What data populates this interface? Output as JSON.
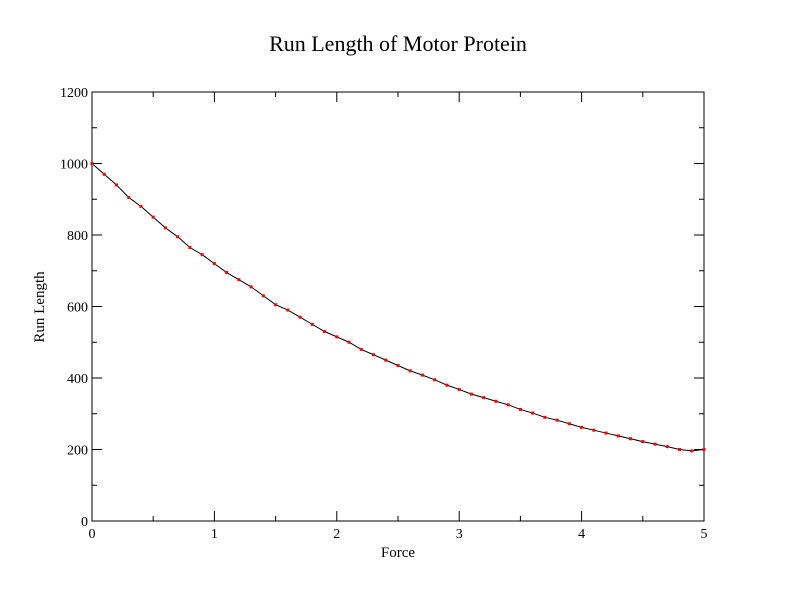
{
  "chart_data": {
    "type": "line",
    "title": "Run Length of Motor Protein",
    "xlabel": "Force",
    "ylabel": "Run Length",
    "xlim": [
      0,
      5
    ],
    "ylim": [
      0,
      1200
    ],
    "x_ticks": [
      0,
      1,
      2,
      3,
      4,
      5
    ],
    "y_ticks": [
      0,
      200,
      400,
      600,
      800,
      1000,
      1200
    ],
    "x_tick_labels": [
      "0",
      "1",
      "2",
      "3",
      "4",
      "5"
    ],
    "y_tick_labels": [
      "0",
      "200",
      "400",
      "600",
      "800",
      "1000",
      "1200"
    ],
    "grid": false,
    "line_color": "#000000",
    "marker_color": "#ff0000",
    "series": [
      {
        "marker": "square",
        "x": [
          0,
          0.1,
          0.2,
          0.3,
          0.4,
          0.5,
          0.6,
          0.7,
          0.8,
          0.9,
          1.0,
          1.1,
          1.2,
          1.3,
          1.4,
          1.5,
          1.6,
          1.7,
          1.8,
          1.9,
          2.0,
          2.1,
          2.2,
          2.3,
          2.4,
          2.5,
          2.6,
          2.7,
          2.8,
          2.9,
          3.0,
          3.1,
          3.2,
          3.3,
          3.4,
          3.5,
          3.6,
          3.7,
          3.8,
          3.9,
          4.0,
          4.1,
          4.2,
          4.3,
          4.4,
          4.5,
          4.6,
          4.7,
          4.8,
          4.9,
          5.0
        ],
        "y": [
          1000,
          970,
          940,
          905,
          880,
          850,
          820,
          795,
          765,
          745,
          720,
          695,
          675,
          655,
          630,
          605,
          590,
          570,
          550,
          530,
          515,
          500,
          480,
          465,
          450,
          435,
          420,
          408,
          395,
          380,
          368,
          355,
          345,
          335,
          325,
          312,
          302,
          290,
          282,
          272,
          262,
          254,
          246,
          238,
          230,
          222,
          215,
          208,
          200,
          196,
          200
        ]
      }
    ]
  }
}
